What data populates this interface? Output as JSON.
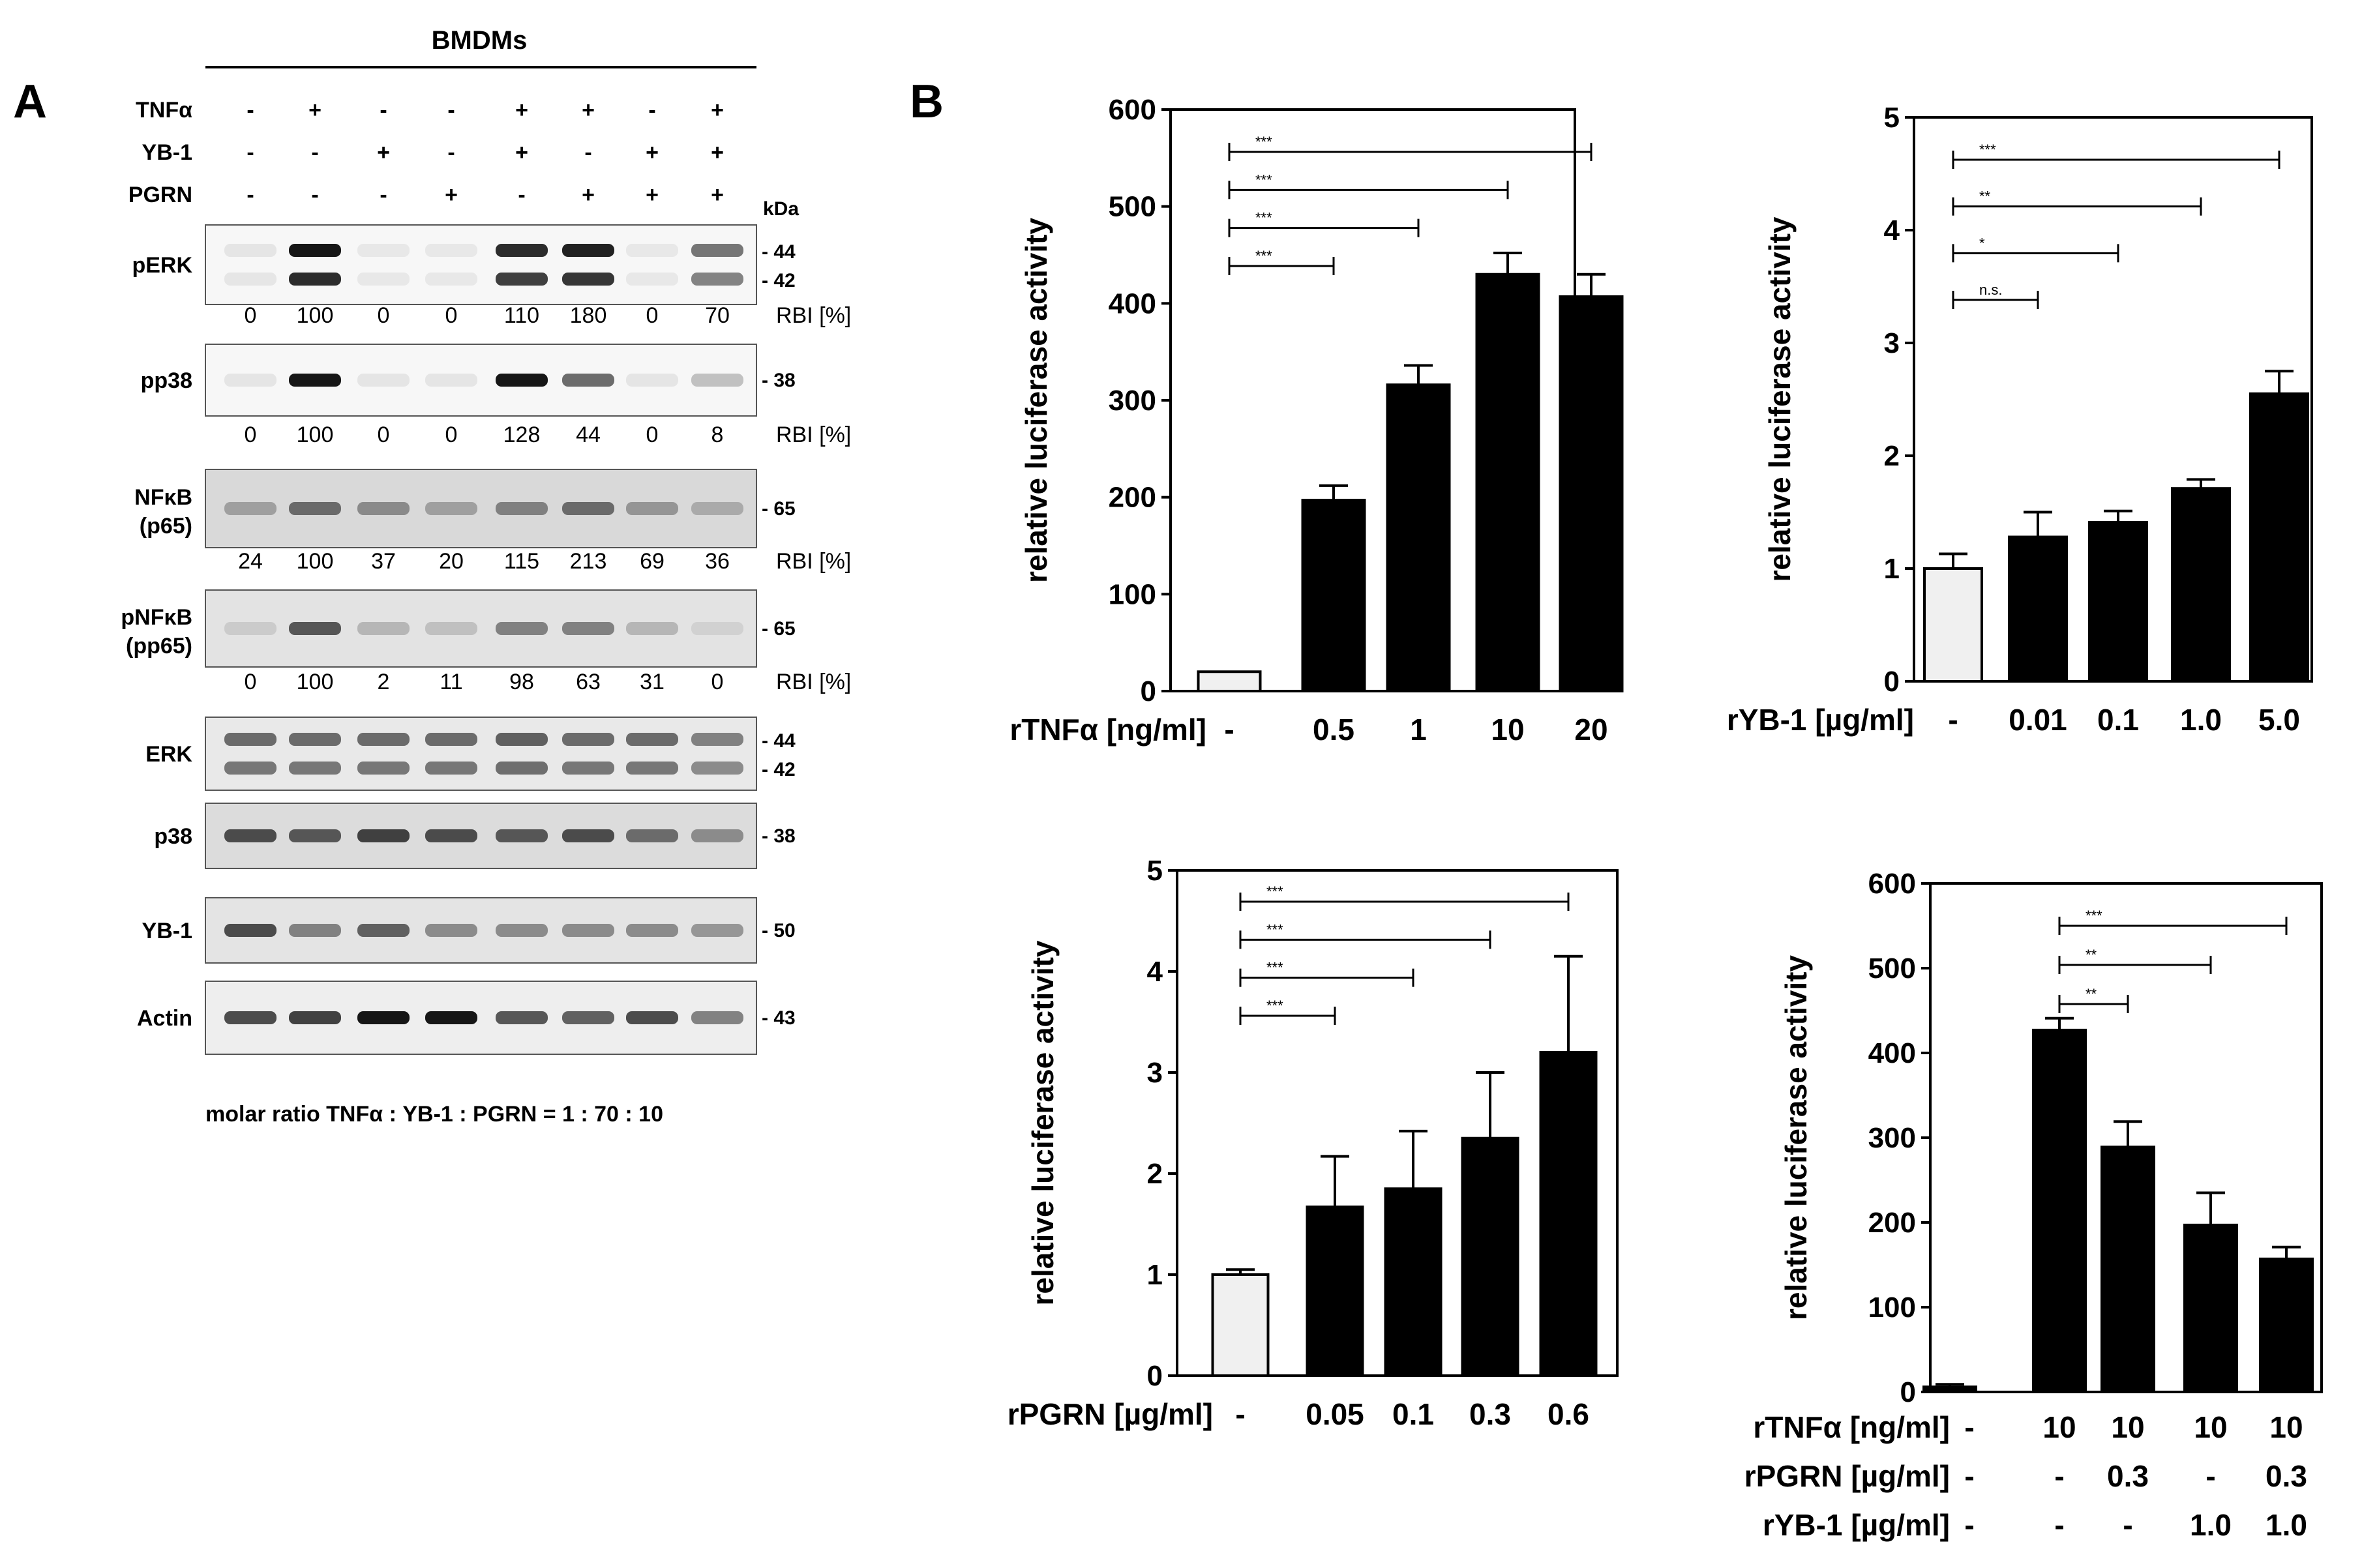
{
  "panel_a": {
    "label": "A",
    "header": "BMDMs",
    "treatments": [
      {
        "name": "TNFα",
        "values": [
          "-",
          "+",
          "-",
          "-",
          "+",
          "+",
          "-",
          "+"
        ]
      },
      {
        "name": "YB-1",
        "values": [
          "-",
          "-",
          "+",
          "-",
          "+",
          "-",
          "+",
          "+"
        ]
      },
      {
        "name": "PGRN",
        "values": [
          "-",
          "-",
          "-",
          "+",
          "-",
          "+",
          "+",
          "+"
        ]
      }
    ],
    "kda_label": "kDa",
    "rbi_label": "RBI [%]",
    "blots": [
      {
        "name": "pERK",
        "markers": [
          "44",
          "42"
        ],
        "rbi": [
          "0",
          "100",
          "0",
          "0",
          "110",
          "180",
          "0",
          "70"
        ],
        "intensity": [
          0.03,
          1.0,
          0.02,
          0.02,
          0.9,
          0.95,
          0.02,
          0.55
        ],
        "bands": 2,
        "bg": "#f7f7f7"
      },
      {
        "name": "pp38",
        "markers": [
          "38"
        ],
        "rbi": [
          "0",
          "100",
          "0",
          "0",
          "128",
          "44",
          "0",
          "8"
        ],
        "intensity": [
          0.03,
          1.0,
          0.03,
          0.03,
          1.0,
          0.6,
          0.03,
          0.2
        ],
        "bands": 1,
        "bg": "#f7f7f7"
      },
      {
        "name": "NFκB",
        "sub": "(p65)",
        "markers": [
          "65"
        ],
        "rbi": [
          "24",
          "100",
          "37",
          "20",
          "115",
          "213",
          "69",
          "36"
        ],
        "intensity": [
          0.35,
          0.6,
          0.45,
          0.35,
          0.5,
          0.6,
          0.4,
          0.3
        ],
        "bands": 1,
        "bg": "#d9d9d9"
      },
      {
        "name": "pNFκB",
        "sub": "(pp65)",
        "markers": [
          "65"
        ],
        "rbi": [
          "0",
          "100",
          "2",
          "11",
          "98",
          "63",
          "31",
          "0"
        ],
        "intensity": [
          0.15,
          0.7,
          0.25,
          0.2,
          0.5,
          0.5,
          0.25,
          0.12
        ],
        "bands": 1,
        "bg": "#e3e3e3"
      },
      {
        "name": "ERK",
        "markers": [
          "44",
          "42"
        ],
        "intensity": [
          0.6,
          0.6,
          0.6,
          0.6,
          0.65,
          0.6,
          0.6,
          0.5
        ],
        "bands": 2,
        "bg": "#e9e9e9"
      },
      {
        "name": "p38",
        "markers": [
          "38"
        ],
        "intensity": [
          0.75,
          0.7,
          0.8,
          0.75,
          0.7,
          0.75,
          0.6,
          0.45
        ],
        "bands": 1,
        "bg": "#dcdcdc"
      },
      {
        "name": "YB-1",
        "markers": [
          "50"
        ],
        "intensity": [
          0.75,
          0.5,
          0.65,
          0.45,
          0.45,
          0.45,
          0.45,
          0.4
        ],
        "bands": 1,
        "bg": "#e4e4e4"
      },
      {
        "name": "Actin",
        "markers": [
          "43"
        ],
        "intensity": [
          0.75,
          0.8,
          1.0,
          1.0,
          0.7,
          0.65,
          0.75,
          0.5
        ],
        "bands": 1,
        "bg": "#eeeeee"
      }
    ],
    "footnote": "molar ratio TNFα : YB-1 : PGRN = 1 : 70 : 10"
  },
  "panel_b": {
    "label": "B"
  },
  "chart_data": [
    {
      "type": "bar",
      "title": "",
      "ylabel": "relative luciferase activity",
      "xlabel": "rTNFα [ng/ml]",
      "categories": [
        "-",
        "0.5",
        "1",
        "10",
        "20"
      ],
      "values": [
        20,
        197,
        316,
        430,
        407
      ],
      "errors": [
        0,
        15,
        20,
        22,
        23
      ],
      "ylim": [
        0,
        600
      ],
      "yticks": [
        "0",
        "100",
        "200",
        "300",
        "400",
        "500",
        "600"
      ],
      "control_index": 0,
      "significance": [
        {
          "from": 0,
          "to": 1,
          "label": "***"
        },
        {
          "from": 0,
          "to": 2,
          "label": "***"
        },
        {
          "from": 0,
          "to": 3,
          "label": "***"
        },
        {
          "from": 0,
          "to": 4,
          "label": "***"
        }
      ]
    },
    {
      "type": "bar",
      "title": "",
      "ylabel": "relative luciferase activity",
      "xlabel": "rYB-1 [µg/ml]",
      "categories": [
        "-",
        "0.01",
        "0.1",
        "1.0",
        "5.0"
      ],
      "values": [
        1.0,
        1.28,
        1.41,
        1.71,
        2.55
      ],
      "errors": [
        0.13,
        0.22,
        0.1,
        0.08,
        0.2
      ],
      "ylim": [
        0,
        5
      ],
      "yticks": [
        "0",
        "1",
        "2",
        "3",
        "4",
        "5"
      ],
      "control_index": 0,
      "significance": [
        {
          "from": 0,
          "to": 1,
          "label": "n.s."
        },
        {
          "from": 0,
          "to": 2,
          "label": "*"
        },
        {
          "from": 0,
          "to": 3,
          "label": "**"
        },
        {
          "from": 0,
          "to": 4,
          "label": "***"
        }
      ]
    },
    {
      "type": "bar",
      "title": "",
      "ylabel": "relative luciferase activity",
      "xlabel": "rPGRN [µg/ml]",
      "categories": [
        "-",
        "0.05",
        "0.1",
        "0.3",
        "0.6"
      ],
      "values": [
        1.0,
        1.67,
        1.85,
        2.35,
        3.2
      ],
      "errors": [
        0.05,
        0.5,
        0.57,
        0.65,
        0.95
      ],
      "ylim": [
        0,
        5
      ],
      "yticks": [
        "0",
        "1",
        "2",
        "3",
        "4",
        "5"
      ],
      "control_index": 0,
      "significance": [
        {
          "from": 0,
          "to": 1,
          "label": "***"
        },
        {
          "from": 0,
          "to": 2,
          "label": "***"
        },
        {
          "from": 0,
          "to": 3,
          "label": "***"
        },
        {
          "from": 0,
          "to": 4,
          "label": "***"
        }
      ]
    },
    {
      "type": "bar",
      "title": "",
      "ylabel": "relative luciferase activity",
      "xlabel_rows": [
        {
          "label": "rTNFα [ng/ml]",
          "values": [
            "-",
            "10",
            "10",
            "10",
            "10"
          ]
        },
        {
          "label": "rPGRN [µg/ml]",
          "values": [
            "-",
            "-",
            "0.3",
            "-",
            "0.3"
          ]
        },
        {
          "label": "rYB-1 [µg/ml]",
          "values": [
            "-",
            "-",
            "-",
            "1.0",
            "1.0"
          ]
        }
      ],
      "values": [
        6,
        427,
        289,
        197,
        157
      ],
      "errors": [
        3,
        14,
        30,
        38,
        14
      ],
      "ylim": [
        0,
        600
      ],
      "yticks": [
        "0",
        "100",
        "200",
        "300",
        "400",
        "500",
        "600"
      ],
      "control_index": -1,
      "significance": [
        {
          "from": 1,
          "to": 2,
          "label": "**"
        },
        {
          "from": 1,
          "to": 3,
          "label": "**"
        },
        {
          "from": 1,
          "to": 4,
          "label": "***"
        }
      ]
    }
  ]
}
